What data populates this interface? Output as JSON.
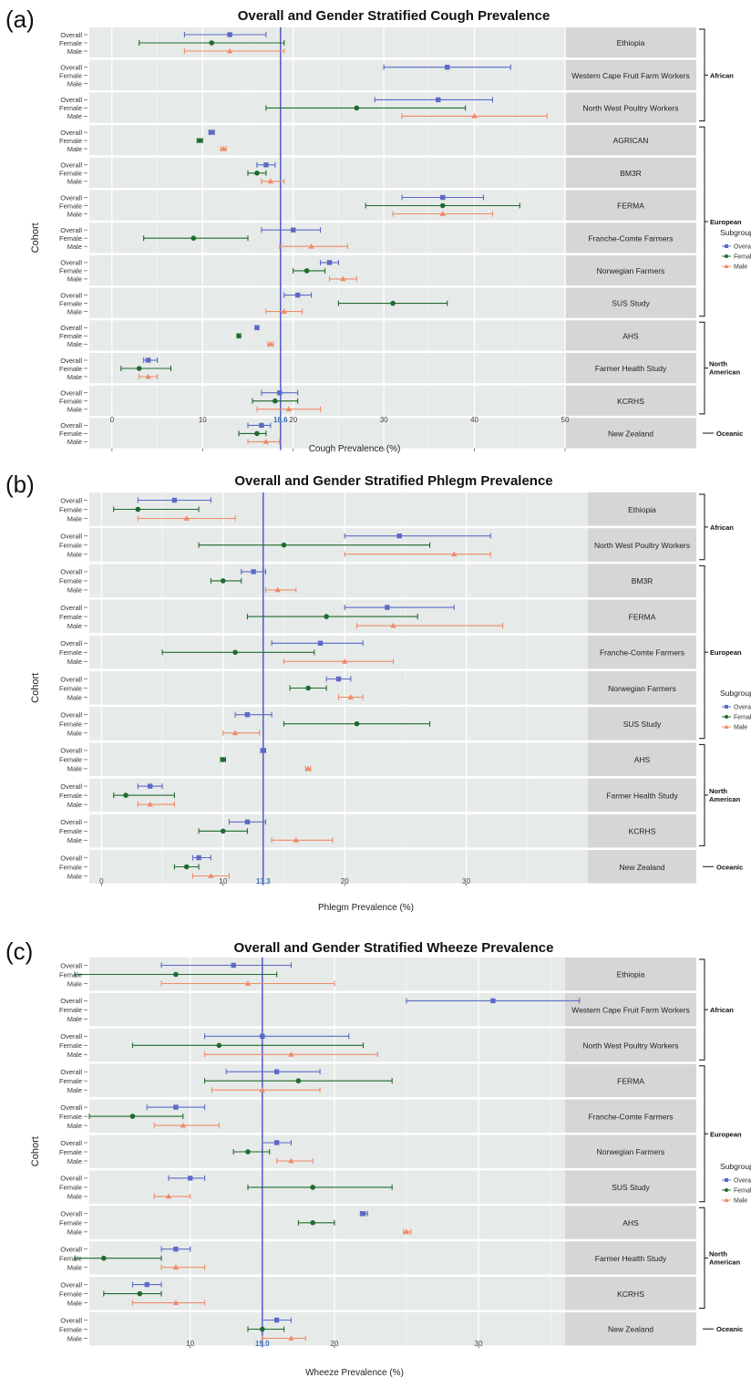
{
  "chart_data": [
    {
      "type": "forest",
      "panel_label": "(a)",
      "title": "Overall and Gender Stratified Cough Prevalence",
      "xlabel": "Cough Prevalence (%)",
      "ylabel": "Cohort",
      "xlim": [
        -2.5,
        50
      ],
      "x_ticks": [
        "0",
        "10",
        "20",
        "30",
        "40",
        "50"
      ],
      "reference_value": 18.6,
      "reference_label": "18.6",
      "row_labels": [
        "Overall",
        "Female",
        "Male"
      ],
      "legend_title": "Subgroup",
      "legend_entries": [
        "Overall",
        "Female",
        "Male"
      ],
      "colors": {
        "Overall": "#5b6ac7",
        "Female": "#1e6b2e",
        "Male": "#f08a6a",
        "reference": "#4a4fc4"
      },
      "cohorts": [
        {
          "name": "Ethiopia",
          "overall": [
            13,
            8,
            17
          ],
          "female": [
            11,
            3,
            19
          ],
          "male": [
            13,
            8,
            19
          ]
        },
        {
          "name": "Western Cape Fruit Farm Workers",
          "overall": [
            37,
            30,
            44
          ],
          "female": null,
          "male": null
        },
        {
          "name": "North West Poultry Workers",
          "overall": [
            36,
            29,
            42
          ],
          "female": [
            27,
            17,
            39
          ],
          "male": [
            40,
            32,
            48
          ]
        },
        {
          "name": "AGRICAN",
          "overall": [
            11,
            10.7,
            11.3
          ],
          "female": [
            9.7,
            9.4,
            10
          ],
          "male": [
            12.3,
            12,
            12.6
          ]
        },
        {
          "name": "BM3R",
          "overall": [
            17,
            16,
            18
          ],
          "female": [
            16,
            15,
            17
          ],
          "male": [
            17.5,
            16.5,
            19
          ]
        },
        {
          "name": "FERMA",
          "overall": [
            36.5,
            32,
            41
          ],
          "female": [
            36.5,
            28,
            45
          ],
          "male": [
            36.5,
            31,
            42
          ]
        },
        {
          "name": "Franche-Comte Farmers",
          "overall": [
            20,
            16.5,
            23
          ],
          "female": [
            9,
            3.5,
            15
          ],
          "male": [
            22,
            18.5,
            26
          ]
        },
        {
          "name": "Norwegian Farmers",
          "overall": [
            24,
            23,
            25
          ],
          "female": [
            21.5,
            20,
            23.5
          ],
          "male": [
            25.5,
            24,
            27
          ]
        },
        {
          "name": "SUS Study",
          "overall": [
            20.5,
            19,
            22
          ],
          "female": [
            31,
            25,
            37
          ],
          "male": [
            19,
            17,
            21
          ]
        },
        {
          "name": "AHS",
          "overall": [
            16,
            15.8,
            16.2
          ],
          "female": [
            14,
            13.8,
            14.2
          ],
          "male": [
            17.5,
            17.2,
            17.8
          ]
        },
        {
          "name": "Farmer Health Study",
          "overall": [
            4,
            3.5,
            5
          ],
          "female": [
            3,
            1,
            6.5
          ],
          "male": [
            4,
            3,
            5
          ]
        },
        {
          "name": "KCRHS",
          "overall": [
            18.5,
            16.5,
            20.5
          ],
          "female": [
            18,
            15.5,
            20.5
          ],
          "male": [
            19.5,
            16,
            23
          ]
        },
        {
          "name": "New Zealand",
          "overall": [
            16.5,
            15,
            17.5
          ],
          "female": [
            16,
            14,
            17
          ],
          "male": [
            17,
            15,
            18.5
          ]
        }
      ],
      "regions": [
        {
          "label": "African",
          "from": 0,
          "to": 2
        },
        {
          "label": "European",
          "from": 3,
          "to": 8
        },
        {
          "label": "North American",
          "from": 9,
          "to": 11
        },
        {
          "label": "Oceanic",
          "from": 12,
          "to": 12
        }
      ]
    },
    {
      "type": "forest",
      "panel_label": "(b)",
      "title": "Overall and Gender Stratified Phlegm Prevalence",
      "xlabel": "Phlegm Prevalence (%)",
      "ylabel": "Cohort",
      "xlim": [
        -1,
        40
      ],
      "x_ticks": [
        "0",
        "10",
        "20",
        "30"
      ],
      "reference_value": 13.3,
      "reference_label": "13.3",
      "row_labels": [
        "Overall",
        "Female",
        "Male"
      ],
      "legend_title": "Subgroup",
      "legend_entries": [
        "Overall",
        "Female",
        "Male"
      ],
      "colors": {
        "Overall": "#5b6ac7",
        "Female": "#1e6b2e",
        "Male": "#f08a6a",
        "reference": "#4a4fc4"
      },
      "cohorts": [
        {
          "name": "Ethiopia",
          "overall": [
            6,
            3,
            9
          ],
          "female": [
            3,
            1,
            8
          ],
          "male": [
            7,
            3,
            11
          ]
        },
        {
          "name": "North West Poultry Workers",
          "overall": [
            24.5,
            20,
            32
          ],
          "female": [
            15,
            8,
            27
          ],
          "male": [
            29,
            20,
            32
          ]
        },
        {
          "name": "BM3R",
          "overall": [
            12.5,
            11.5,
            13.5
          ],
          "female": [
            10,
            9,
            11.5
          ],
          "male": [
            14.5,
            13.5,
            16
          ]
        },
        {
          "name": "FERMA",
          "overall": [
            23.5,
            20,
            29
          ],
          "female": [
            18.5,
            12,
            26
          ],
          "male": [
            24,
            21,
            33
          ]
        },
        {
          "name": "Franche-Comte Farmers",
          "overall": [
            18,
            14,
            21.5
          ],
          "female": [
            11,
            5,
            17.5
          ],
          "male": [
            20,
            15,
            24
          ]
        },
        {
          "name": "Norwegian Farmers",
          "overall": [
            19.5,
            18.5,
            20.5
          ],
          "female": [
            17,
            15.5,
            18.5
          ],
          "male": [
            20.5,
            19.5,
            21.5
          ]
        },
        {
          "name": "SUS Study",
          "overall": [
            12,
            11,
            14
          ],
          "female": [
            21,
            15,
            27
          ],
          "male": [
            11,
            10,
            13
          ]
        },
        {
          "name": "AHS",
          "overall": [
            13.3,
            13.1,
            13.5
          ],
          "female": [
            10,
            9.8,
            10.2
          ],
          "male": [
            17,
            16.8,
            17.2
          ]
        },
        {
          "name": "Farmer Health Study",
          "overall": [
            4,
            3,
            5
          ],
          "female": [
            2,
            1,
            6
          ],
          "male": [
            4,
            3,
            6
          ]
        },
        {
          "name": "KCRHS",
          "overall": [
            12,
            10.5,
            13.5
          ],
          "female": [
            10,
            8,
            12
          ],
          "male": [
            16,
            14,
            19
          ]
        },
        {
          "name": "New Zealand",
          "overall": [
            8,
            7.5,
            9
          ],
          "female": [
            7,
            6,
            8
          ],
          "male": [
            9,
            7.5,
            10.5
          ]
        }
      ],
      "regions": [
        {
          "label": "African",
          "from": 0,
          "to": 1
        },
        {
          "label": "European",
          "from": 2,
          "to": 6
        },
        {
          "label": "North American",
          "from": 7,
          "to": 9
        },
        {
          "label": "Oceanic",
          "from": 10,
          "to": 10
        }
      ]
    },
    {
      "type": "forest",
      "panel_label": "(c)",
      "title": "Overall and Gender Stratified Wheeze Prevalence",
      "xlabel": "Wheeze Prevalence (%)",
      "ylabel": "Cohort",
      "xlim": [
        3,
        36
      ],
      "x_ticks": [
        "10",
        "20",
        "30"
      ],
      "reference_value": 15.0,
      "reference_label": "15.0",
      "row_labels": [
        "Overall",
        "Female",
        "Male"
      ],
      "legend_title": "Subgroup",
      "legend_entries": [
        "Overall",
        "Female",
        "Male"
      ],
      "colors": {
        "Overall": "#5b6ac7",
        "Female": "#1e6b2e",
        "Male": "#f08a6a",
        "reference": "#4a4fc4"
      },
      "cohorts": [
        {
          "name": "Ethiopia",
          "overall": [
            13,
            8,
            17
          ],
          "female": [
            9,
            2,
            16
          ],
          "male": [
            14,
            8,
            20
          ]
        },
        {
          "name": "Western Cape Fruit Farm Workers",
          "overall": [
            31,
            25,
            37
          ],
          "female": null,
          "male": null
        },
        {
          "name": "North West Poultry Workers",
          "overall": [
            15,
            11,
            21
          ],
          "female": [
            12,
            6,
            22
          ],
          "male": [
            17,
            11,
            23
          ]
        },
        {
          "name": "FERMA",
          "overall": [
            16,
            12.5,
            19
          ],
          "female": [
            17.5,
            11,
            24
          ],
          "male": [
            15,
            11.5,
            19
          ]
        },
        {
          "name": "Franche-Comte Farmers",
          "overall": [
            9,
            7,
            11
          ],
          "female": [
            6,
            3,
            9.5
          ],
          "male": [
            9.5,
            7.5,
            12
          ]
        },
        {
          "name": "Norwegian Farmers",
          "overall": [
            16,
            15,
            17
          ],
          "female": [
            14,
            13,
            15.5
          ],
          "male": [
            17,
            16,
            18.5
          ]
        },
        {
          "name": "SUS Study",
          "overall": [
            10,
            8.5,
            11
          ],
          "female": [
            18.5,
            14,
            24
          ],
          "male": [
            8.5,
            7.5,
            10
          ]
        },
        {
          "name": "AHS",
          "overall": [
            22,
            21.8,
            22.3
          ],
          "female": [
            18.5,
            17.5,
            20
          ],
          "male": [
            25,
            24.8,
            25.3
          ]
        },
        {
          "name": "Farmer Health Study",
          "overall": [
            9,
            8,
            10
          ],
          "female": [
            4,
            2,
            8
          ],
          "male": [
            9,
            8,
            11
          ]
        },
        {
          "name": "KCRHS",
          "overall": [
            7,
            6,
            8
          ],
          "female": [
            6.5,
            4,
            8
          ],
          "male": [
            9,
            6,
            11
          ]
        },
        {
          "name": "New Zealand",
          "overall": [
            16,
            15,
            17
          ],
          "female": [
            15,
            14,
            16.5
          ],
          "male": [
            17,
            15,
            18
          ]
        }
      ],
      "regions": [
        {
          "label": "African",
          "from": 0,
          "to": 2
        },
        {
          "label": "European",
          "from": 3,
          "to": 6
        },
        {
          "label": "North American",
          "from": 7,
          "to": 9
        },
        {
          "label": "Oceanic",
          "from": 10,
          "to": 10
        }
      ]
    }
  ]
}
